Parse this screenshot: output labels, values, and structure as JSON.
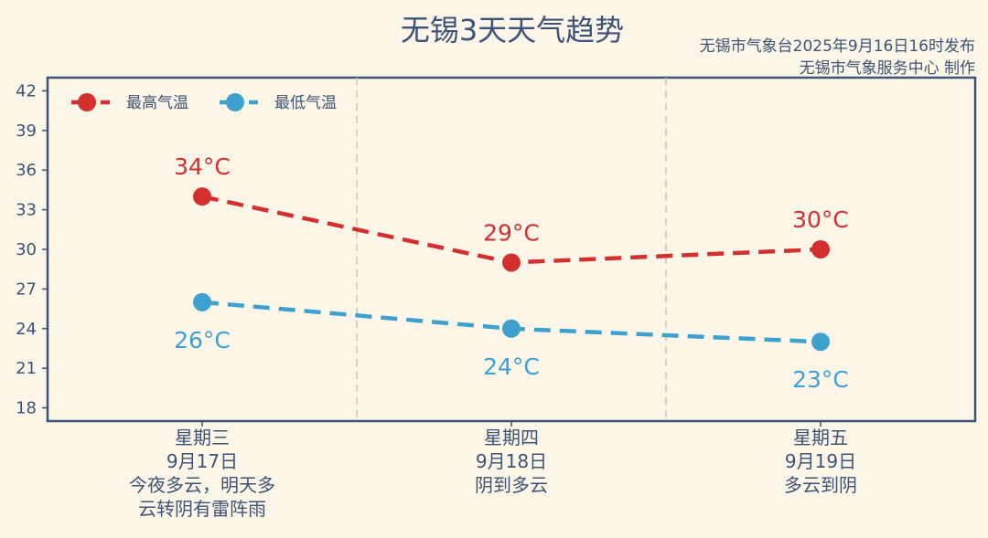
{
  "title": "无锡3天天气趋势",
  "credits": [
    "无锡市气象台2025年9月16日16时发布",
    "无锡市气象服务中心 制作"
  ],
  "colors": {
    "high": "#d32f2f",
    "low": "#3ea0cf",
    "axis": "#3d5476",
    "background": "#fbf6e8",
    "divider": "#c9c4b8"
  },
  "chart_data": {
    "type": "line",
    "categories": [
      [
        "星期三",
        "9月17日",
        "今夜多云，明天多",
        "云转阴有雷阵雨"
      ],
      [
        "星期四",
        "9月18日",
        "阴到多云"
      ],
      [
        "星期五",
        "9月19日",
        "多云到阴"
      ]
    ],
    "series": [
      {
        "name": "最高气温",
        "values": [
          34,
          29,
          30
        ],
        "labels": [
          "34°C",
          "29°C",
          "30°C"
        ],
        "color": "#d32f2f"
      },
      {
        "name": "最低气温",
        "values": [
          26,
          24,
          23
        ],
        "labels": [
          "26°C",
          "24°C",
          "23°C"
        ],
        "color": "#3ea0cf"
      }
    ],
    "yticks": [
      "18",
      "21",
      "24",
      "27",
      "30",
      "33",
      "36",
      "39",
      "42"
    ],
    "ylim": [
      17,
      43
    ],
    "legend": "top-left",
    "grid": false
  }
}
